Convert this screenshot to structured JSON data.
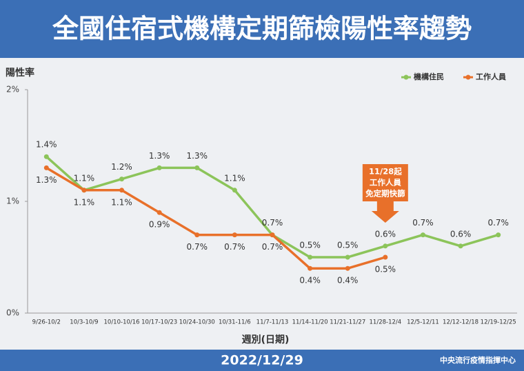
{
  "chart_data": {
    "type": "line",
    "title": "全國住宿式機構定期篩檢陽性率趨勢",
    "y_label": "陽性率",
    "x_label": "週別(日期)",
    "footer_date": "2022/12/29",
    "source": "中央流行疫情指揮中心",
    "categories": [
      "9/26-10/2",
      "10/3-10/9",
      "10/10-10/16",
      "10/17-10/23",
      "10/24-10/30",
      "10/31-11/6",
      "11/7-11/13",
      "11/14-11/20",
      "11/21-11/27",
      "11/28-12/4",
      "12/5-12/11",
      "12/12-12/18",
      "12/19-12/25"
    ],
    "series": [
      {
        "name": "機構住民",
        "color": "#8cc45a",
        "values": [
          1.4,
          1.1,
          1.2,
          1.3,
          1.3,
          1.1,
          0.7,
          0.5,
          0.5,
          0.6,
          0.7,
          0.6,
          0.7
        ],
        "value_labels": [
          "1.4%",
          "1.1%",
          "1.2%",
          "1.3%",
          "1.3%",
          "1.1%",
          "0.7%",
          "0.5%",
          "0.5%",
          "0.6%",
          "0.7%",
          "0.6%",
          "0.7%"
        ]
      },
      {
        "name": "工作人員",
        "color": "#e8702a",
        "values": [
          1.3,
          1.1,
          1.1,
          0.9,
          0.7,
          0.7,
          0.7,
          0.4,
          0.4,
          0.5,
          null,
          null,
          null
        ],
        "value_labels": [
          "1.3%",
          "1.1%",
          "1.1%",
          "0.9%",
          "0.7%",
          "0.7%",
          "0.7%",
          "0.4%",
          "0.4%",
          "0.5%",
          null,
          null,
          null
        ]
      }
    ],
    "annotation": [
      "11/28起",
      "工作人員",
      "免定期快篩"
    ],
    "annotation_color": "#e8702a",
    "ylim": [
      0,
      2
    ],
    "yticks": [
      {
        "value": 0,
        "label": "0%"
      },
      {
        "value": 1,
        "label": "1%"
      },
      {
        "value": 2,
        "label": "2%"
      }
    ],
    "grid": false,
    "legend": "top-right"
  }
}
